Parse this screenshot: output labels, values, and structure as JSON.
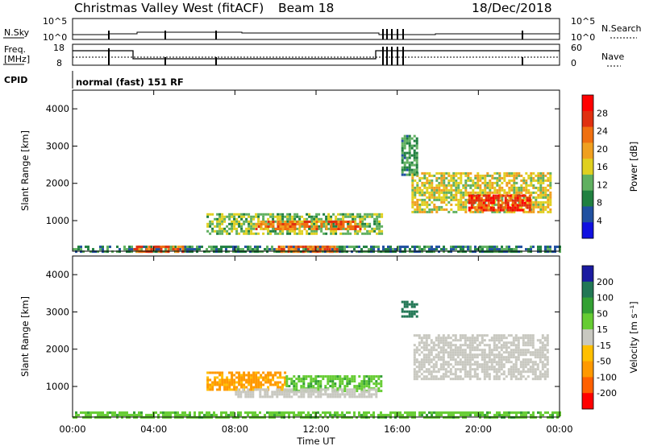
{
  "header": {
    "radar_title": "Christmas Valley West (fitACF)",
    "beam": "Beam 18",
    "date": "18/Dec/2018"
  },
  "nsky_panel": {
    "left_label": "N.Sky",
    "left_ticks": [
      "10^5",
      "10^0"
    ],
    "right_ticks": [
      "10^5",
      "10^0"
    ],
    "right_label": "N.Search"
  },
  "freq_panel": {
    "left_label_line1": "Freq.",
    "left_label_line2": "[MHz]",
    "left_ticks": [
      "18",
      "8"
    ],
    "right_ticks": [
      "60",
      "0"
    ],
    "right_label": "Nave"
  },
  "cpid": {
    "label": "CPID",
    "value": "normal (fast) 151 RF"
  },
  "colors": {
    "power": [
      "#1010e0",
      "#2050a0",
      "#208040",
      "#60b060",
      "#e0d020",
      "#f0a020",
      "#f07010",
      "#e03010",
      "#ff0000"
    ],
    "velocity": [
      "#ff0000",
      "#ff6000",
      "#ff9900",
      "#ffbf00",
      "#c8c8c0",
      "#66cc33",
      "#33a033",
      "#227755",
      "#1a1aa0"
    ],
    "ground_scatter": "#c8c8c0"
  },
  "chart_data": [
    {
      "type": "heatmap",
      "parameter": "power",
      "xlabel": "",
      "ylabel": "Slant Range [km]",
      "x_ticks": [
        "00:00",
        "04:00",
        "08:00",
        "12:00",
        "16:00",
        "20:00",
        "00:00"
      ],
      "xlim": [
        0,
        24
      ],
      "y_ticks": [
        "1000",
        "2000",
        "3000",
        "4000"
      ],
      "ylim": [
        180,
        4500
      ],
      "colorbar_label": "Power [dB]",
      "colorbar_ticks": [
        "28",
        "24",
        "20",
        "16",
        "12",
        "8",
        "4"
      ],
      "colorbar_range": [
        0,
        32
      ],
      "regions": [
        {
          "t": [
            6.6,
            15.3
          ],
          "r": [
            650,
            1200
          ],
          "level": 15
        },
        {
          "t": [
            9.0,
            14.2
          ],
          "r": [
            750,
            1000
          ],
          "level": 26
        },
        {
          "t": [
            0.0,
            24.0
          ],
          "r": [
            190,
            330
          ],
          "level": 10
        },
        {
          "t": [
            3.0,
            5.5
          ],
          "r": [
            190,
            330
          ],
          "level": 27
        },
        {
          "t": [
            10.0,
            13.0
          ],
          "r": [
            190,
            330
          ],
          "level": 27
        },
        {
          "t": [
            16.7,
            23.5
          ],
          "r": [
            1200,
            2300
          ],
          "level": 18
        },
        {
          "t": [
            19.5,
            22.5
          ],
          "r": [
            1250,
            1700
          ],
          "level": 30
        },
        {
          "t": [
            16.2,
            17.0
          ],
          "r": [
            2200,
            3300
          ],
          "level": 11
        }
      ]
    },
    {
      "type": "heatmap",
      "parameter": "velocity",
      "xlabel": "Time UT",
      "ylabel": "Slant Range [km]",
      "x_ticks": [
        "00:00",
        "04:00",
        "08:00",
        "12:00",
        "16:00",
        "20:00",
        "00:00"
      ],
      "xlim": [
        0,
        24
      ],
      "y_ticks": [
        "1000",
        "2000",
        "3000",
        "4000"
      ],
      "ylim": [
        180,
        4500
      ],
      "colorbar_label": "Velocity [m s⁻¹]",
      "colorbar_ticks": [
        "200",
        "100",
        "50",
        "15",
        "-15",
        "-50",
        "-100",
        "-200"
      ],
      "colorbar_range": [
        -250,
        250
      ],
      "regions": [
        {
          "t": [
            6.6,
            10.5
          ],
          "r": [
            900,
            1400
          ],
          "velocity": -60
        },
        {
          "t": [
            10.5,
            15.2
          ],
          "r": [
            900,
            1300
          ],
          "velocity": 40
        },
        {
          "t": [
            8.0,
            15.0
          ],
          "r": [
            700,
            950
          ],
          "ground_scatter": true
        },
        {
          "t": [
            0.0,
            24.0
          ],
          "r": [
            190,
            330
          ],
          "velocity": 35
        },
        {
          "t": [
            16.8,
            23.4
          ],
          "r": [
            1200,
            2400
          ],
          "ground_scatter": true
        },
        {
          "t": [
            16.2,
            17.0
          ],
          "r": [
            2900,
            3300
          ],
          "velocity": 180
        }
      ]
    }
  ]
}
